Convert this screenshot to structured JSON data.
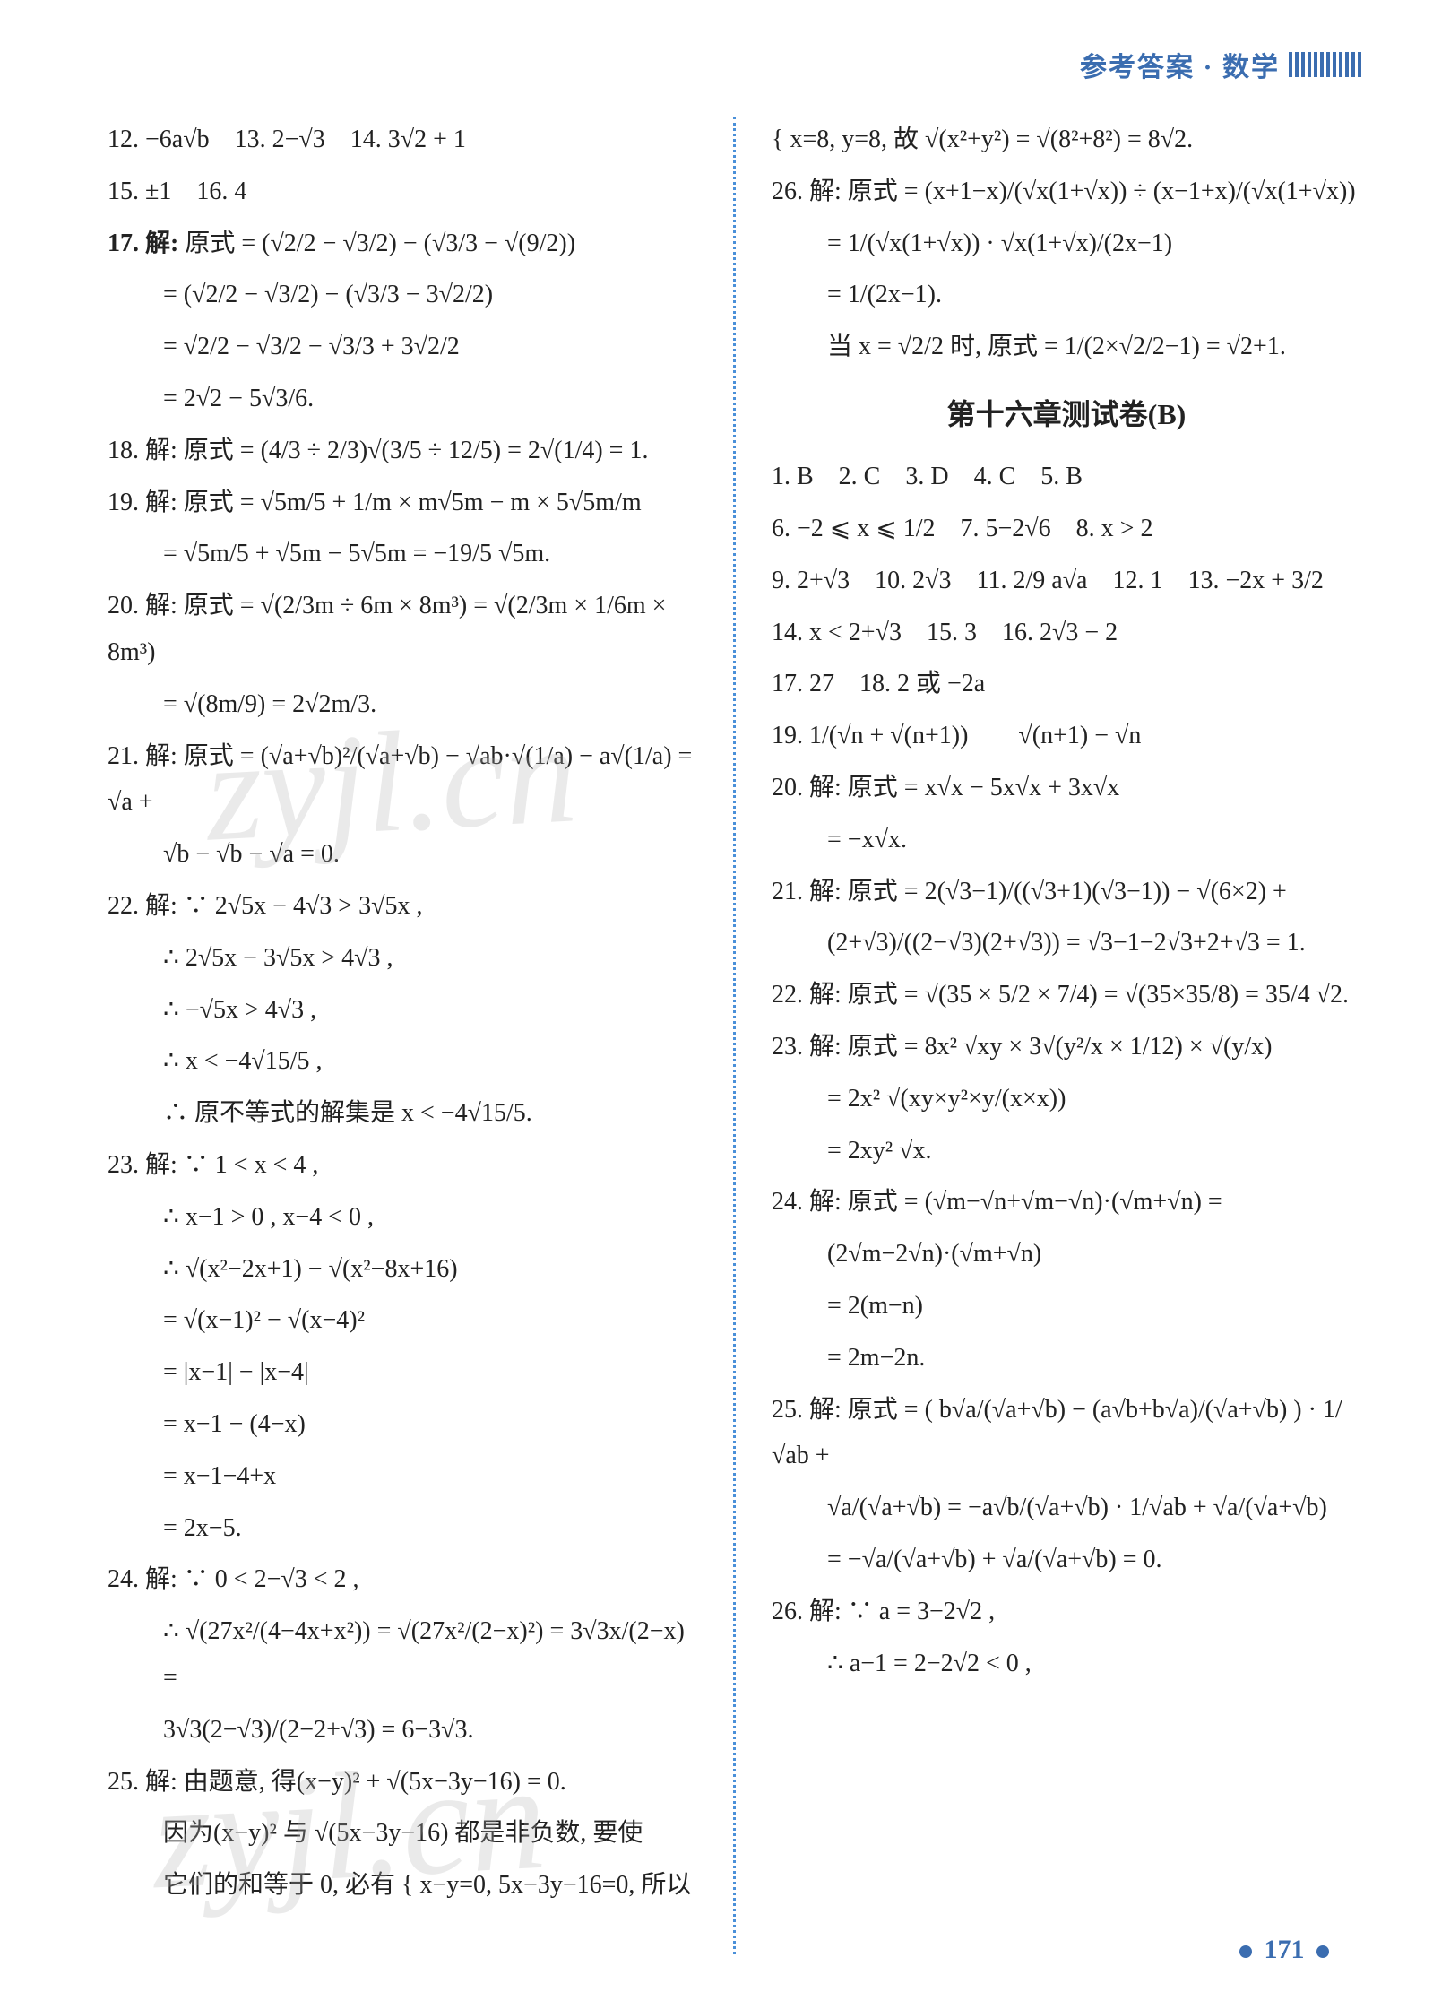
{
  "header": {
    "title": "参考答案 · 数学"
  },
  "colors": {
    "accent": "#3b6db0",
    "text": "#222222",
    "divider": "#4a90d9",
    "watermark": "rgba(180,180,180,0.28)"
  },
  "left_column": {
    "line12_15": "12. −6a√b　13. 2−√3　14. 3√2 + 1",
    "line15_16": "15. ±1　16. 4",
    "q17_label": "17. 解:",
    "q17_l1": "原式 = (√2/2 − √3/2) − (√3/3 − √(9/2))",
    "q17_l2": "= (√2/2 − √3/2) − (√3/3 − 3√2/2)",
    "q17_l3": "= √2/2 − √3/2 − √3/3 + 3√2/2",
    "q17_l4": "= 2√2 − 5√3/6.",
    "q18": "18. 解: 原式 = (4/3 ÷ 2/3)√(3/5 ÷ 12/5) = 2√(1/4) = 1.",
    "q19_l1": "19. 解: 原式 = √5m/5 + 1/m × m√5m − m × 5√5m/m",
    "q19_l2": "= √5m/5 + √5m − 5√5m = −19/5 √5m.",
    "q20_l1": "20. 解: 原式 = √(2/3m ÷ 6m × 8m³) = √(2/3m × 1/6m × 8m³)",
    "q20_l2": "= √(8m/9) = 2√2m/3.",
    "q21_l1": "21. 解: 原式 = (√a+√b)²/(√a+√b) − √ab·√(1/a) − a√(1/a) = √a +",
    "q21_l2": "√b − √b − √a = 0.",
    "q22_l1": "22. 解: ∵ 2√5x − 4√3 > 3√5x ,",
    "q22_l2": "∴ 2√5x − 3√5x > 4√3 ,",
    "q22_l3": "∴ −√5x > 4√3 ,",
    "q22_l4": "∴ x < −4√15/5 ,",
    "q22_l5": "∴ 原不等式的解集是 x < −4√15/5.",
    "q23_l1": "23. 解: ∵ 1 < x < 4 ,",
    "q23_l2": "∴ x−1 > 0 , x−4 < 0 ,",
    "q23_l3": "∴ √(x²−2x+1) − √(x²−8x+16)",
    "q23_l4": "= √(x−1)² − √(x−4)²",
    "q23_l5": "= |x−1| − |x−4|",
    "q23_l6": "= x−1 − (4−x)",
    "q23_l7": "= x−1−4+x",
    "q23_l8": "= 2x−5.",
    "q24_l1": "24. 解: ∵ 0 < 2−√3 < 2 ,",
    "q24_l2": "∴ √(27x²/(4−4x+x²)) = √(27x²/(2−x)²) = 3√3x/(2−x) =",
    "q24_l3": "3√3(2−√3)/(2−2+√3) = 6−3√3.",
    "q25_l1": "25. 解: 由题意, 得(x−y)² + √(5x−3y−16) = 0.",
    "q25_l2": "因为(x−y)² 与 √(5x−3y−16) 都是非负数, 要使",
    "q25_l3": "它们的和等于 0, 必有 { x−y=0, 5x−3y−16=0, 所以"
  },
  "right_column": {
    "q25_cont": "{ x=8, y=8, 故 √(x²+y²) = √(8²+8²) = 8√2.",
    "q26_l1": "26. 解: 原式 = (x+1−x)/(√x(1+√x)) ÷ (x−1+x)/(√x(1+√x))",
    "q26_l2": "= 1/(√x(1+√x)) · √x(1+√x)/(2x−1)",
    "q26_l3": "= 1/(2x−1).",
    "q26_l4": "当 x = √2/2 时, 原式 = 1/(2×√2/2−1) = √2+1.",
    "section_title": "第十六章测试卷(B)",
    "mc": "1. B　2. C　3. D　4. C　5. B",
    "l6_8": "6. −2 ⩽ x ⩽ 1/2　7. 5−2√6　8. x > 2",
    "l9_13": "9. 2+√3　10. 2√3　11. 2/9 a√a　12. 1　13. −2x + 3/2",
    "l14_16": "14. x < 2+√3　15. 3　16. 2√3 − 2",
    "l17_18": "17. 27　18. 2 或 −2a",
    "q19": "19. 1/(√n + √(n+1))　　√(n+1) − √n",
    "q20_l1": "20. 解: 原式 = x√x − 5x√x + 3x√x",
    "q20_l2": "= −x√x.",
    "q21_l1": "21. 解: 原式 = 2(√3−1)/((√3+1)(√3−1)) − √(6×2) +",
    "q21_l2": "(2+√3)/((2−√3)(2+√3)) = √3−1−2√3+2+√3 = 1.",
    "q22": "22. 解: 原式 = √(35 × 5/2 × 7/4) = √(35×35/8) = 35/4 √2.",
    "q23_l1": "23. 解: 原式 = 8x² √xy × 3√(y²/x × 1/12) × √(y/x)",
    "q23_l2": "= 2x² √(xy×y²×y/(x×x))",
    "q23_l3": "= 2xy² √x.",
    "q24_l1": "24. 解: 原式 = (√m−√n+√m−√n)·(√m+√n) =",
    "q24_l2": "(2√m−2√n)·(√m+√n)",
    "q24_l3": "= 2(m−n)",
    "q24_l4": "= 2m−2n.",
    "q25_l1": "25. 解: 原式 = ( b√a/(√a+√b) − (a√b+b√a)/(√a+√b) ) · 1/√ab +",
    "q25_l2": "√a/(√a+√b) = −a√b/(√a+√b) · 1/√ab + √a/(√a+√b)",
    "q25_l3": "= −√a/(√a+√b) + √a/(√a+√b) = 0.",
    "q26b_l1": "26. 解: ∵ a = 3−2√2 ,",
    "q26b_l2": "∴ a−1 = 2−2√2 < 0 ,"
  },
  "page_number": "171",
  "watermark_text": "zyjl.cn"
}
